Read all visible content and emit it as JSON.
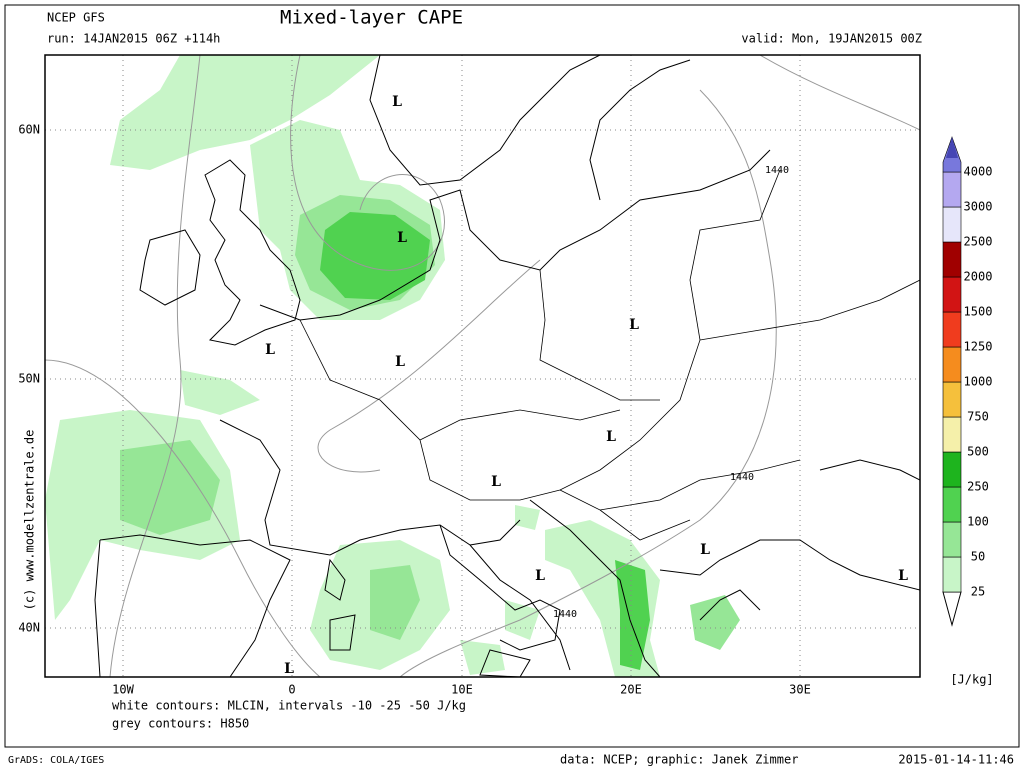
{
  "header": {
    "model": "NCEP GFS",
    "run": "run: 14JAN2015 06Z +114h",
    "title": "Mixed-layer CAPE",
    "valid": "valid: Mon, 19JAN2015 00Z"
  },
  "map": {
    "lon_labels": [
      "10W",
      "0",
      "10E",
      "20E",
      "30E"
    ],
    "lat_labels": [
      "60N",
      "50N",
      "40N"
    ],
    "lows": [
      "L",
      "L",
      "L",
      "L",
      "L",
      "L",
      "L",
      "L",
      "L",
      "L",
      "L"
    ],
    "contour_labels": [
      "1440",
      "1440",
      "1440"
    ],
    "copyright": "(c) www.modellzentrale.de"
  },
  "colorbar": {
    "levels": [
      25,
      50,
      100,
      250,
      500,
      750,
      1000,
      1250,
      1500,
      2000,
      2500,
      3000,
      4000
    ],
    "colors": [
      "#c8f5c8",
      "#96e696",
      "#50d250",
      "#1eb41e",
      "#f5f0aa",
      "#f5c03c",
      "#f58c1e",
      "#f03c1e",
      "#d21414",
      "#a00000",
      "#e6e6fa",
      "#b4a8f0",
      "#7878dc"
    ],
    "top_color": "#4646b4",
    "unit": "[J/kg]"
  },
  "notes": [
    "white contours: MLCIN, intervals -10 -25 -50 J/kg",
    "grey contours: H850"
  ],
  "footer": {
    "software": "GrADS: COLA/IGES",
    "credit": "data: NCEP; graphic: Janek Zimmer",
    "timestamp": "2015-01-14-11:46"
  }
}
